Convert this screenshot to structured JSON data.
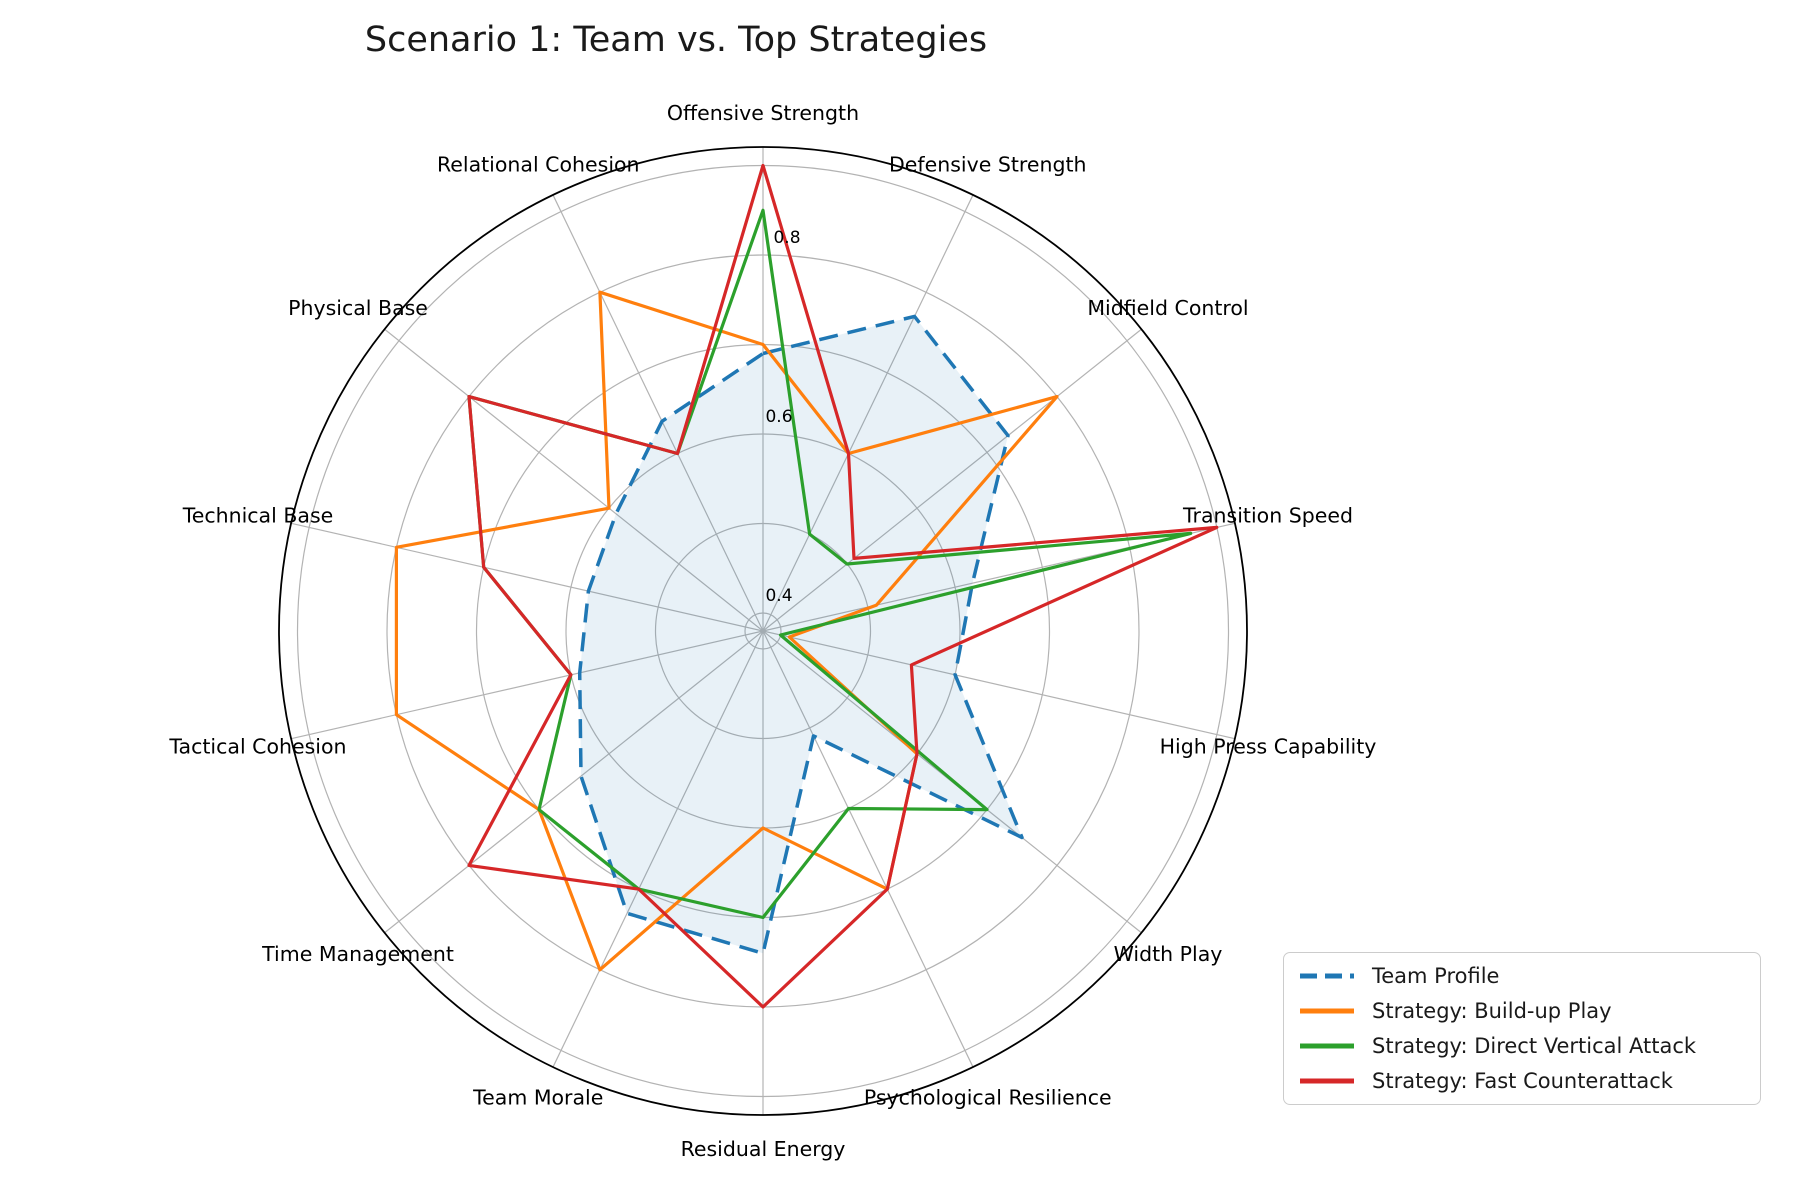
{
  "title": "Scenario 1: Team vs. Top Strategies",
  "chart_data": {
    "type": "radar",
    "categories": [
      "Offensive Strength",
      "Defensive Strength",
      "Midfield Control",
      "Transition Speed",
      "High Press Capability",
      "Width Play",
      "Psychological Resilience",
      "Residual Energy",
      "Team Morale",
      "Time Management",
      "Tactical Cohesion",
      "Technical Base",
      "Physical Base",
      "Relational Cohesion"
    ],
    "series": [
      {
        "name": "Team Profile",
        "color": "#1f77b4",
        "dashed": true,
        "filled": true,
        "fill_color": "rgba(31,119,180,0.10)",
        "values": [
          0.69,
          0.77,
          0.73,
          0.62,
          0.6,
          0.75,
          0.51,
          0.74,
          0.73,
          0.64,
          0.59,
          0.58,
          0.59,
          0.64
        ]
      },
      {
        "name": "Strategy: Build-up Play",
        "color": "#ff7f0e",
        "dashed": false,
        "filled": false,
        "values": [
          0.7,
          0.6,
          0.8,
          0.51,
          0.41,
          0.6,
          0.7,
          0.6,
          0.8,
          0.7,
          0.8,
          0.8,
          0.6,
          0.8
        ]
      },
      {
        "name": "Strategy: Direct Vertical Attack",
        "color": "#2ca02c",
        "dashed": false,
        "filled": false,
        "values": [
          0.85,
          0.5,
          0.5,
          0.87,
          0.4,
          0.7,
          0.6,
          0.7,
          0.7,
          0.7,
          0.6,
          0.7,
          0.8,
          0.6
        ]
      },
      {
        "name": "Strategy: Fast Counterattack",
        "color": "#d62728",
        "dashed": false,
        "filled": false,
        "values": [
          0.9,
          0.6,
          0.51,
          0.9,
          0.55,
          0.6,
          0.7,
          0.8,
          0.7,
          0.8,
          0.6,
          0.7,
          0.8,
          0.6
        ]
      }
    ],
    "r_tick_labels": [
      "0.4",
      "0.6",
      "0.8"
    ],
    "r_ticks": [
      0.4,
      0.6,
      0.8
    ],
    "r_gridlines": [
      0.4,
      0.5,
      0.6,
      0.7,
      0.8,
      0.9
    ],
    "r_min": 0.38,
    "r_max": 0.92,
    "grid": true,
    "legend_position": "lower right"
  }
}
